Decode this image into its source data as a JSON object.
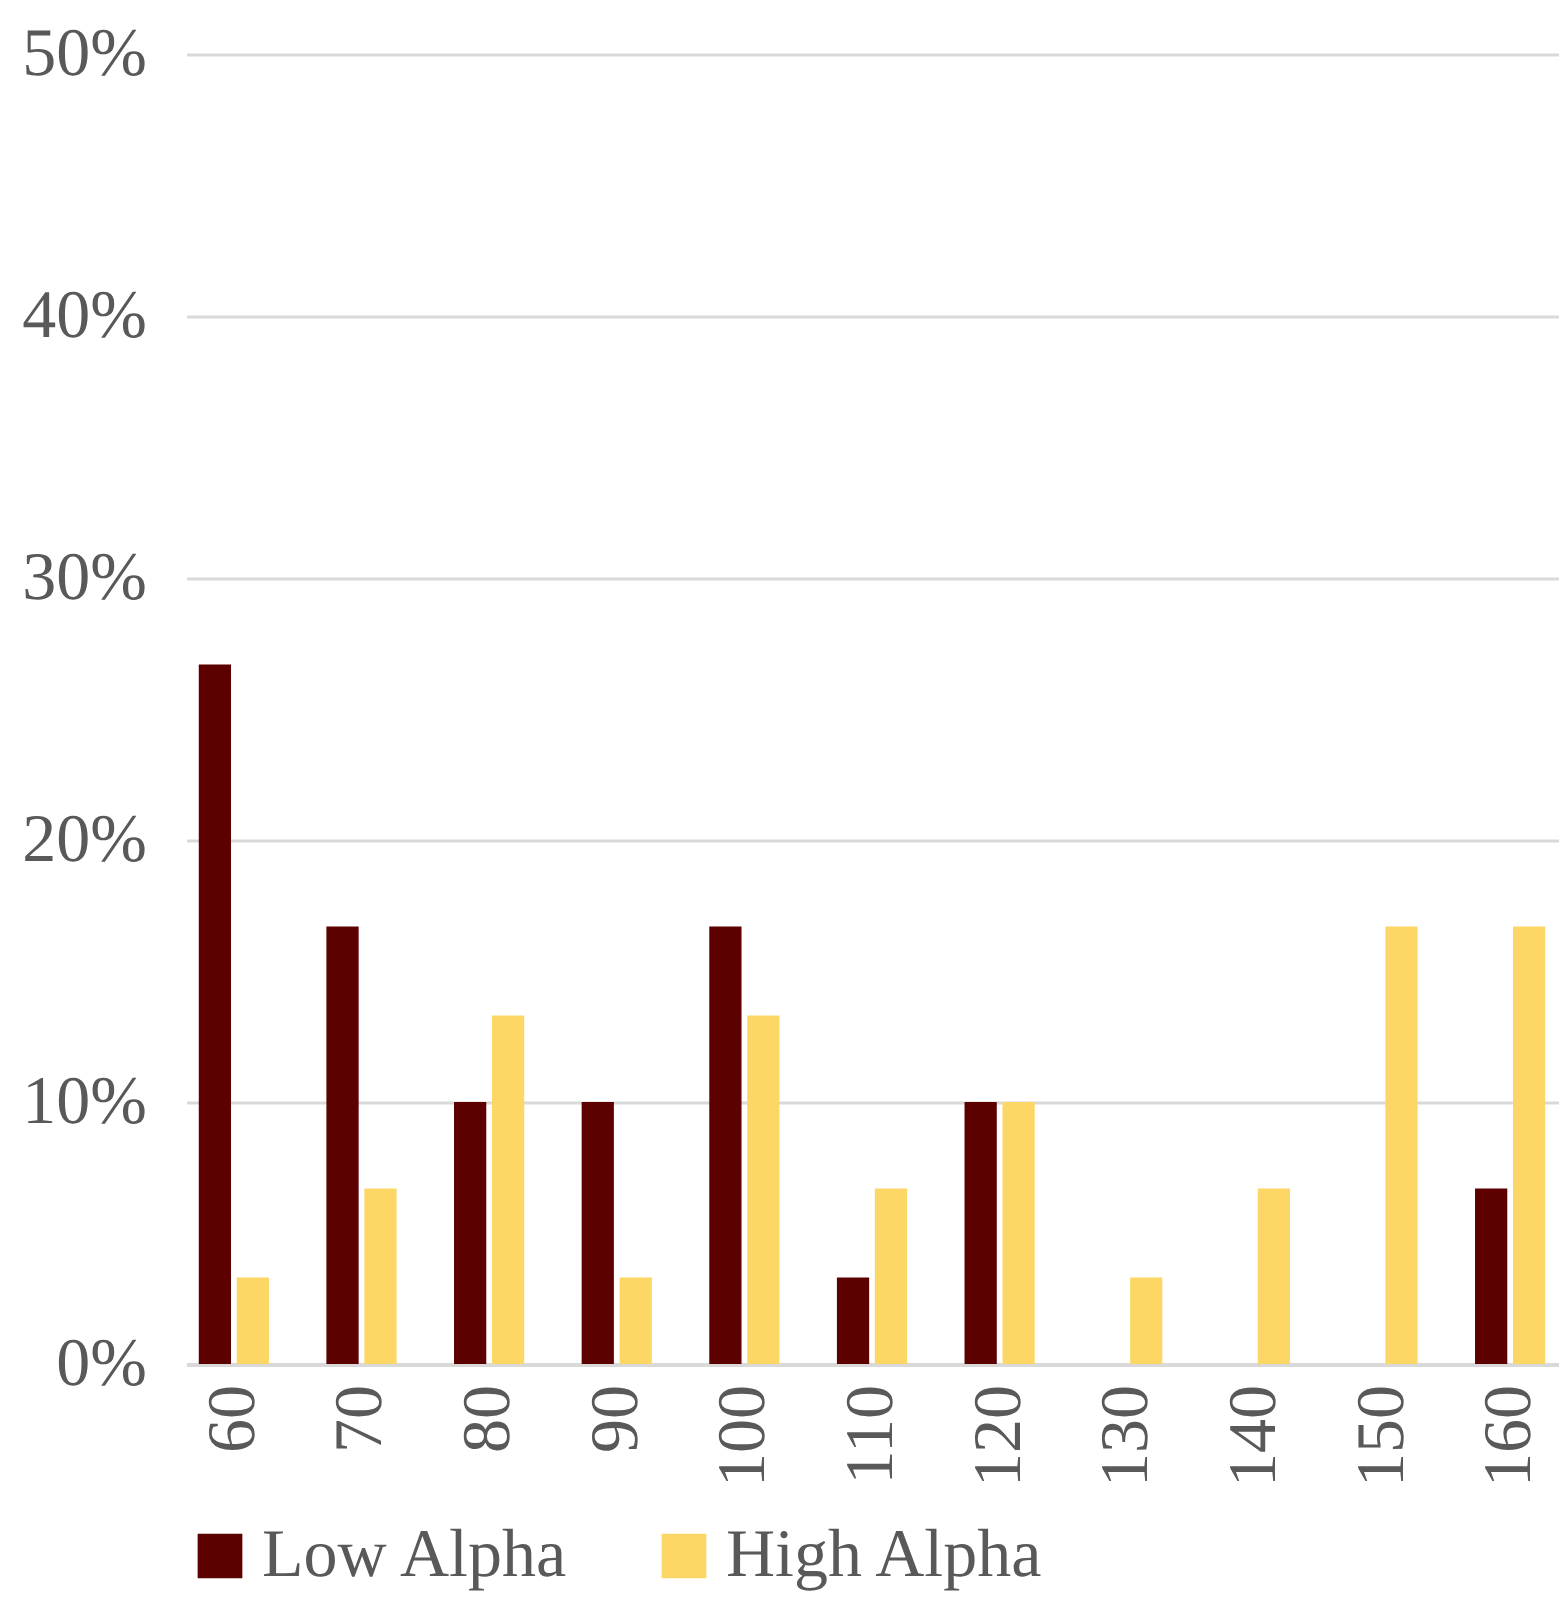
{
  "chart_data": {
    "type": "bar",
    "categories": [
      "60",
      "70",
      "80",
      "90",
      "100",
      "110",
      "120",
      "130",
      "140",
      "150",
      "160"
    ],
    "series": [
      {
        "name": "Low Alpha",
        "color": "#5c0000",
        "values": [
          26.7,
          16.7,
          10,
          10,
          16.7,
          3.3,
          10,
          0,
          0,
          0,
          6.7
        ]
      },
      {
        "name": "High Alpha",
        "color": "#fdd766",
        "values": [
          3.3,
          6.7,
          13.3,
          3.3,
          13.3,
          6.7,
          10,
          3.3,
          6.7,
          16.7,
          16.7
        ]
      }
    ],
    "ylim": [
      0,
      50
    ],
    "yticks": [
      {
        "value": 0,
        "label": "0%"
      },
      {
        "value": 10,
        "label": "10%"
      },
      {
        "value": 20,
        "label": "20%"
      },
      {
        "value": 30,
        "label": "30%"
      },
      {
        "value": 40,
        "label": "40%"
      },
      {
        "value": 50,
        "label": "50%"
      }
    ],
    "grid": "y",
    "legend": "bottom"
  }
}
